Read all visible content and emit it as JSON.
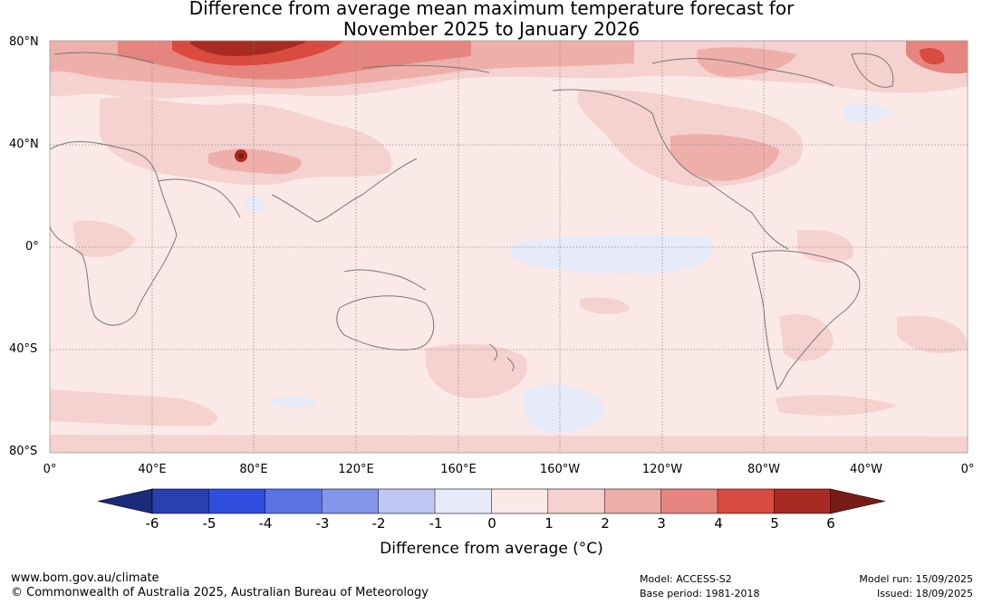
{
  "title_line1": "Difference from average mean maximum temperature forecast for",
  "title_line2": "November 2025 to January 2026",
  "lat_labels": [
    "80°N",
    "40°N",
    "0°",
    "40°S",
    "80°S"
  ],
  "lon_labels": [
    "0°",
    "40°E",
    "80°E",
    "120°E",
    "160°E",
    "160°W",
    "120°W",
    "80°W",
    "40°W",
    "0°"
  ],
  "colorbar": {
    "ticks": [
      "-6",
      "-5",
      "-4",
      "-3",
      "-2",
      "-1",
      "0",
      "1",
      "2",
      "3",
      "4",
      "5",
      "6"
    ],
    "colors": [
      "#1b2a7a",
      "#2a3fb0",
      "#2f4ee0",
      "#5a74e6",
      "#8496ea",
      "#bfc8f2",
      "#e6eaf9",
      "#fbe9e7",
      "#f5d2cf",
      "#eeaea9",
      "#e6857f",
      "#d94b3e",
      "#a82a22",
      "#7a1c16"
    ],
    "label": "Difference from average (°C)"
  },
  "footer": {
    "url": "www.bom.gov.au/climate",
    "copyright": "© Commonwealth of Australia 2025, Australian Bureau of Meteorology",
    "model": "Model: ACCESS-S2",
    "base_period": "Base period: 1981-2018",
    "model_run": "Model run: 15/09/2025",
    "issued": "Issued: 18/09/2025"
  }
}
